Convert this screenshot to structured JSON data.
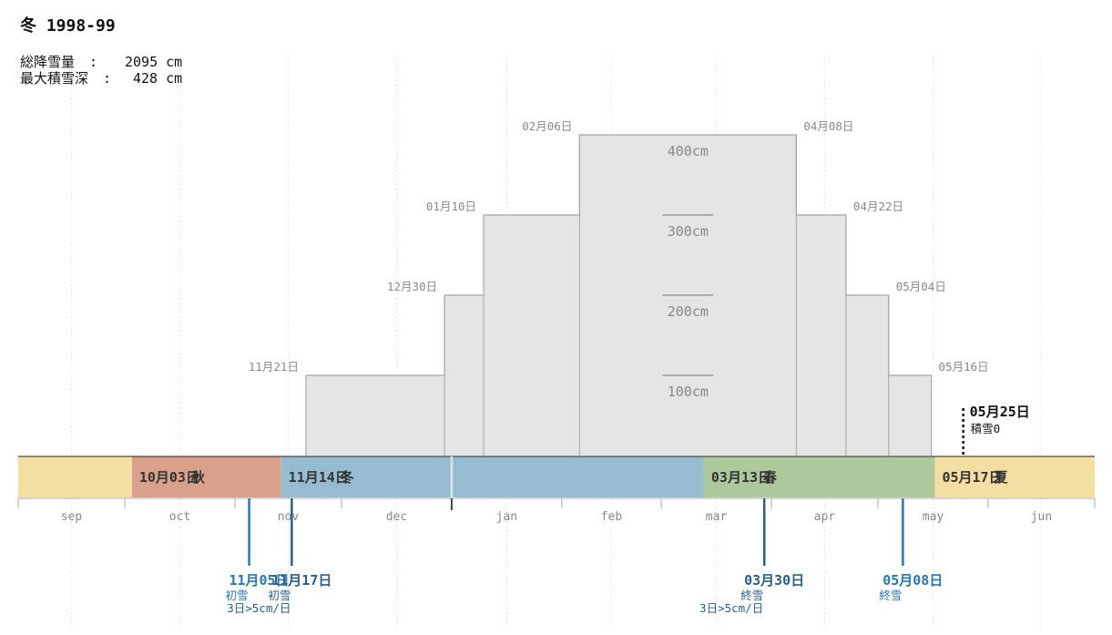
{
  "header": {
    "title": "冬 1998-99",
    "total_snowfall_label": "総降雪量",
    "total_snowfall_value": "2095 cm",
    "max_depth_label": "最大積雪深",
    "max_depth_value": "428 cm"
  },
  "colors": {
    "autumn": "#d9a08a",
    "winter": "#95bcd1",
    "spring": "#adc99c",
    "summer": "#f5dea1",
    "step_fill": "#e5e5e5",
    "step_stroke": "#a5a5a5",
    "first_snow": "#2a78b0",
    "snow_marker": "#2a5f88"
  },
  "chart_data": {
    "type": "step-area",
    "x_domain": [
      "09月01日",
      "06月30日"
    ],
    "months": [
      "sep",
      "oct",
      "nov",
      "dec",
      "jan",
      "feb",
      "mar",
      "apr",
      "may",
      "jun"
    ],
    "y_tiers": [
      {
        "value": 100,
        "label": "100cm"
      },
      {
        "value": 200,
        "label": "200cm"
      },
      {
        "value": 300,
        "label": "300cm"
      },
      {
        "value": 400,
        "label": "400cm"
      }
    ],
    "depth_thresholds": [
      {
        "tier": 100,
        "start": "11月21日",
        "end": "05月16日"
      },
      {
        "tier": 200,
        "start": "12月30日",
        "end": "05月04日"
      },
      {
        "tier": 300,
        "start": "01月10日",
        "end": "04月22日"
      },
      {
        "tier": 400,
        "start": "02月06日",
        "end": "04月08日"
      }
    ],
    "seasons": [
      {
        "name": "",
        "start": "09月01日",
        "end": "10月03日",
        "color": "summer",
        "label": ""
      },
      {
        "name": "秋",
        "start": "10月03日",
        "end": "11月14日",
        "color": "autumn",
        "label": "10月03日"
      },
      {
        "name": "冬",
        "start": "11月14日",
        "end": "03月13日",
        "color": "winter",
        "label": "11月14日"
      },
      {
        "name": "春",
        "start": "03月13日",
        "end": "05月17日",
        "color": "spring",
        "label": "03月13日"
      },
      {
        "name": "夏",
        "start": "05月17日",
        "end": "06月30日",
        "color": "summer",
        "label": "05月17日"
      }
    ],
    "new_year_marker": "01月01日",
    "events": [
      {
        "date": "11月05日",
        "label": "11月05日",
        "sub1": "初雪",
        "sub2": "",
        "color": "first_snow"
      },
      {
        "date": "11月17日",
        "label": "11月17日",
        "sub1": "初雪",
        "sub2": "3日>5cm/日",
        "color": "snow_marker"
      },
      {
        "date": "03月30日",
        "label": "03月30日",
        "sub1": "終雪",
        "sub2": "3日>5cm/日",
        "color": "snow_marker"
      },
      {
        "date": "05月08日",
        "label": "05月08日",
        "sub1": "終雪",
        "sub2": "",
        "color": "first_snow"
      }
    ],
    "snow_zero": {
      "date": "05月25日",
      "label": "05月25日",
      "sub": "積雪0"
    }
  }
}
